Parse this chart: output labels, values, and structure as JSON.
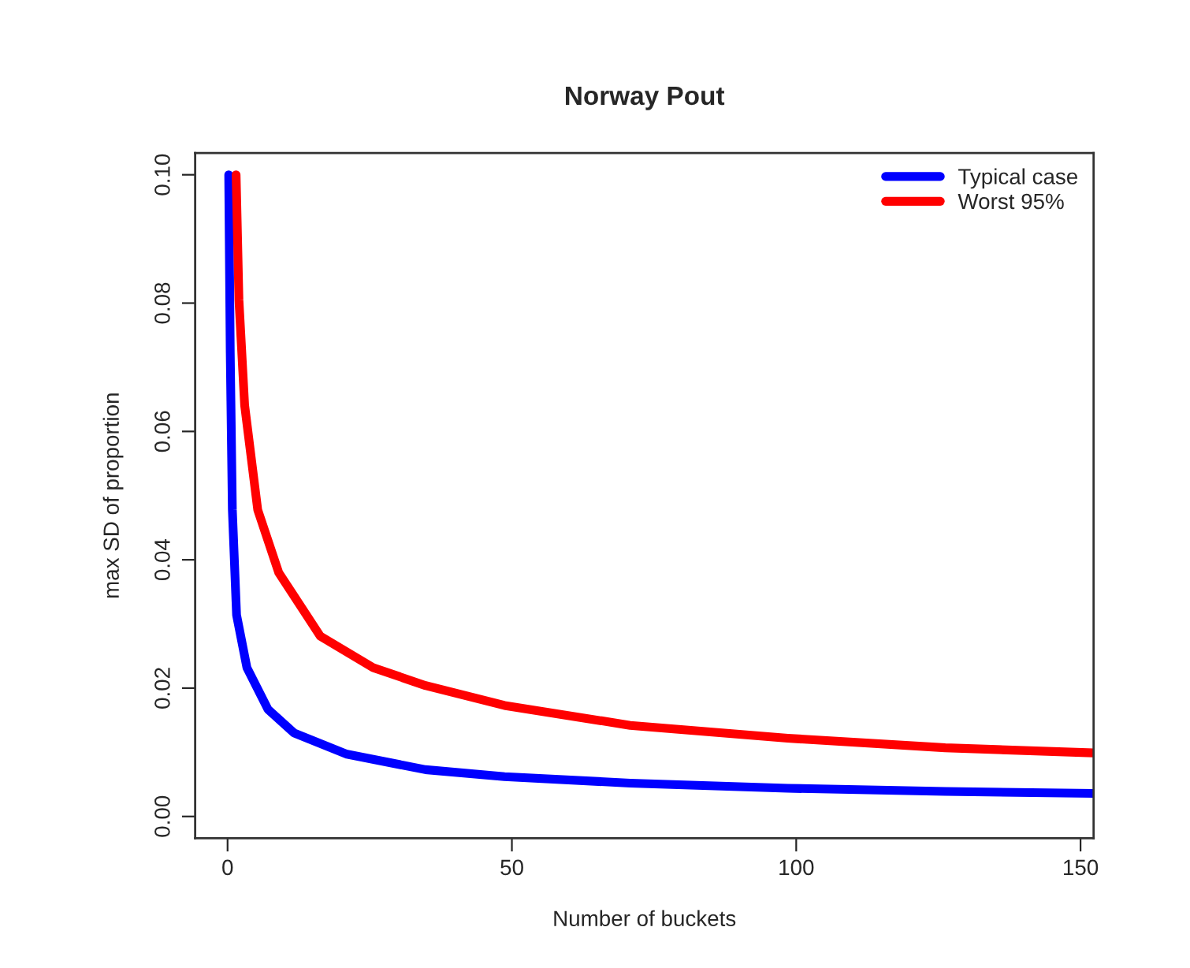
{
  "chart_data": {
    "type": "line",
    "title": "Norway Pout",
    "xlabel": "Number of buckets",
    "ylabel": "max SD of proportion",
    "xlim": [
      -5.7,
      152.3
    ],
    "ylim": [
      -0.0034,
      0.1034
    ],
    "xticks": [
      0,
      50,
      100,
      150
    ],
    "yticks": [
      {
        "value": 0,
        "label": "0.00"
      },
      {
        "value": 0.02,
        "label": "0.02"
      },
      {
        "value": 0.04,
        "label": "0.04"
      },
      {
        "value": 0.06,
        "label": "0.06"
      },
      {
        "value": 0.08,
        "label": "0.08"
      },
      {
        "value": 0.1,
        "label": "0.10"
      }
    ],
    "grid": false,
    "legend": "top right",
    "marker": "none",
    "line_style": "solid",
    "series": [
      {
        "name": "Typical case",
        "color": "#0000ff",
        "x": [
          0.2,
          0.47,
          0.84,
          1.58,
          3.4,
          7.1,
          11.7,
          21,
          34.8,
          48.7,
          70.8,
          98.5,
          126.2,
          152.3
        ],
        "values": [
          0.1,
          0.0723,
          0.0478,
          0.0314,
          0.0232,
          0.0167,
          0.013,
          0.0097,
          0.0073,
          0.0062,
          0.0052,
          0.0044,
          0.0039,
          0.0036
        ]
      },
      {
        "name": "Worst 95%",
        "color": "#ff0000",
        "x": [
          1.5,
          2.0,
          3.0,
          5.3,
          9.0,
          16.3,
          25.6,
          34.8,
          48.7,
          70.8,
          98.5,
          126.2,
          152.3
        ],
        "values": [
          0.1,
          0.0805,
          0.0641,
          0.0478,
          0.038,
          0.0281,
          0.0232,
          0.0204,
          0.0173,
          0.0142,
          0.0122,
          0.0107,
          0.0099
        ]
      }
    ]
  }
}
